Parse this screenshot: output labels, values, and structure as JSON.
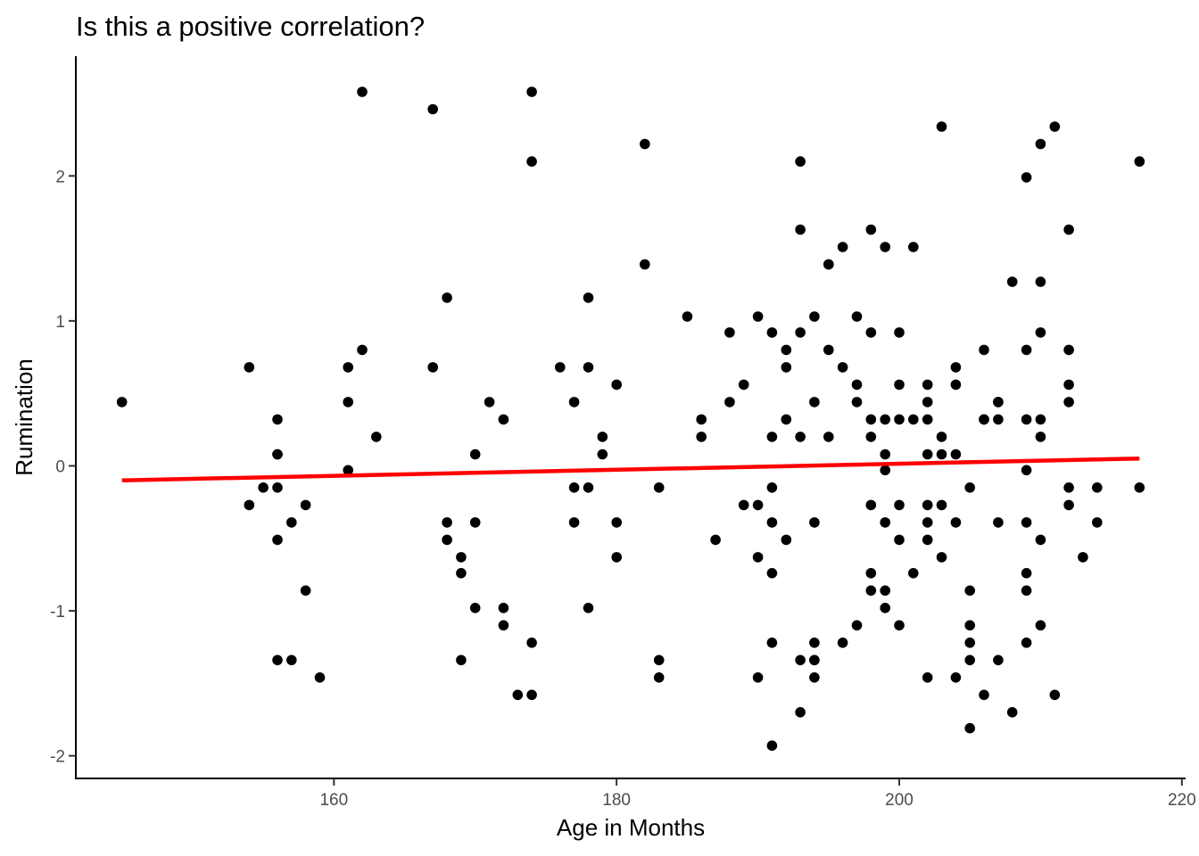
{
  "chart_data": {
    "type": "scatter",
    "title": "Is this a positive correlation?",
    "xlabel": "Age in Months",
    "ylabel": "Rumination",
    "xlim": [
      141.8,
      220.2
    ],
    "ylim": [
      -2.15,
      2.82
    ],
    "x_ticks": [
      160,
      180,
      200,
      220
    ],
    "y_ticks": [
      -2,
      -1,
      0,
      1,
      2
    ],
    "grid": false,
    "legend": "none",
    "point_color": "#000000",
    "trend_color": "#ff0000",
    "trend_line": {
      "x": [
        145,
        217
      ],
      "y": [
        -0.1,
        0.05
      ]
    },
    "points": [
      [
        145,
        0.44
      ],
      [
        154,
        0.68
      ],
      [
        154,
        -0.27
      ],
      [
        155,
        -0.15
      ],
      [
        156,
        0.32
      ],
      [
        156,
        0.08
      ],
      [
        156,
        0.08
      ],
      [
        156,
        -0.15
      ],
      [
        156,
        -0.51
      ],
      [
        156,
        -1.34
      ],
      [
        157,
        -0.39
      ],
      [
        157,
        -1.34
      ],
      [
        158,
        -0.27
      ],
      [
        158,
        -0.86
      ],
      [
        159,
        -1.46
      ],
      [
        161,
        0.68
      ],
      [
        161,
        0.44
      ],
      [
        161,
        -0.03
      ],
      [
        162,
        2.58
      ],
      [
        162,
        0.8
      ],
      [
        163,
        0.2
      ],
      [
        167,
        2.46
      ],
      [
        167,
        0.68
      ],
      [
        168,
        1.16
      ],
      [
        168,
        -0.39
      ],
      [
        168,
        -0.51
      ],
      [
        169,
        -0.63
      ],
      [
        169,
        -0.74
      ],
      [
        169,
        -1.34
      ],
      [
        170,
        0.08
      ],
      [
        170,
        -0.39
      ],
      [
        170,
        -0.98
      ],
      [
        171,
        0.44
      ],
      [
        172,
        0.32
      ],
      [
        172,
        -0.98
      ],
      [
        172,
        -1.1
      ],
      [
        173,
        -1.58
      ],
      [
        174,
        2.58
      ],
      [
        174,
        2.1
      ],
      [
        174,
        -1.22
      ],
      [
        174,
        -1.58
      ],
      [
        176,
        0.68
      ],
      [
        177,
        0.44
      ],
      [
        177,
        -0.15
      ],
      [
        177,
        -0.39
      ],
      [
        178,
        1.16
      ],
      [
        178,
        0.68
      ],
      [
        178,
        -0.15
      ],
      [
        178,
        -0.98
      ],
      [
        179,
        0.2
      ],
      [
        179,
        0.08
      ],
      [
        180,
        0.56
      ],
      [
        180,
        -0.39
      ],
      [
        180,
        -0.63
      ],
      [
        182,
        2.22
      ],
      [
        182,
        1.39
      ],
      [
        183,
        -0.15
      ],
      [
        183,
        -1.34
      ],
      [
        183,
        -1.46
      ],
      [
        185,
        1.03
      ],
      [
        186,
        0.32
      ],
      [
        186,
        0.2
      ],
      [
        187,
        -0.51
      ],
      [
        188,
        0.92
      ],
      [
        188,
        0.44
      ],
      [
        189,
        0.56
      ],
      [
        189,
        -0.27
      ],
      [
        190,
        1.03
      ],
      [
        190,
        -0.27
      ],
      [
        190,
        -0.63
      ],
      [
        190,
        -1.46
      ],
      [
        191,
        0.92
      ],
      [
        191,
        0.2
      ],
      [
        191,
        -0.15
      ],
      [
        191,
        -0.39
      ],
      [
        191,
        -0.74
      ],
      [
        191,
        -1.22
      ],
      [
        191,
        -1.93
      ],
      [
        192,
        0.8
      ],
      [
        192,
        0.68
      ],
      [
        192,
        0.32
      ],
      [
        192,
        -0.51
      ],
      [
        193,
        2.1
      ],
      [
        193,
        1.63
      ],
      [
        193,
        0.92
      ],
      [
        193,
        0.2
      ],
      [
        193,
        -1.34
      ],
      [
        193,
        -1.7
      ],
      [
        194,
        1.03
      ],
      [
        194,
        0.44
      ],
      [
        194,
        -0.39
      ],
      [
        194,
        -1.22
      ],
      [
        194,
        -1.34
      ],
      [
        194,
        -1.34
      ],
      [
        194,
        -1.46
      ],
      [
        195,
        1.39
      ],
      [
        195,
        1.39
      ],
      [
        195,
        0.8
      ],
      [
        195,
        0.2
      ],
      [
        196,
        1.51
      ],
      [
        196,
        0.68
      ],
      [
        196,
        -1.22
      ],
      [
        197,
        1.03
      ],
      [
        197,
        0.56
      ],
      [
        197,
        0.44
      ],
      [
        197,
        -1.1
      ],
      [
        198,
        1.63
      ],
      [
        198,
        0.92
      ],
      [
        198,
        0.32
      ],
      [
        198,
        0.2
      ],
      [
        198,
        -0.27
      ],
      [
        198,
        -0.74
      ],
      [
        198,
        -0.86
      ],
      [
        199,
        1.51
      ],
      [
        199,
        0.32
      ],
      [
        199,
        0.08
      ],
      [
        199,
        -0.03
      ],
      [
        199,
        -0.39
      ],
      [
        199,
        -0.86
      ],
      [
        199,
        -0.98
      ],
      [
        200,
        0.92
      ],
      [
        200,
        0.56
      ],
      [
        200,
        0.32
      ],
      [
        200,
        -0.27
      ],
      [
        200,
        -0.51
      ],
      [
        200,
        -1.1
      ],
      [
        201,
        1.51
      ],
      [
        201,
        0.32
      ],
      [
        201,
        -0.74
      ],
      [
        202,
        0.56
      ],
      [
        202,
        0.44
      ],
      [
        202,
        0.32
      ],
      [
        202,
        -0.27
      ],
      [
        202,
        -0.39
      ],
      [
        202,
        -0.51
      ],
      [
        202,
        -1.46
      ],
      [
        202,
        0.08
      ],
      [
        203,
        2.34
      ],
      [
        203,
        0.2
      ],
      [
        203,
        0.08
      ],
      [
        203,
        -0.27
      ],
      [
        203,
        -0.63
      ],
      [
        204,
        0.68
      ],
      [
        204,
        0.56
      ],
      [
        204,
        0.08
      ],
      [
        204,
        -0.39
      ],
      [
        204,
        -1.46
      ],
      [
        205,
        -0.15
      ],
      [
        205,
        -0.86
      ],
      [
        205,
        -1.1
      ],
      [
        205,
        -1.22
      ],
      [
        205,
        -1.34
      ],
      [
        205,
        -1.81
      ],
      [
        206,
        0.8
      ],
      [
        206,
        0.32
      ],
      [
        206,
        0.32
      ],
      [
        206,
        -1.58
      ],
      [
        207,
        0.44
      ],
      [
        207,
        0.44
      ],
      [
        207,
        0.32
      ],
      [
        207,
        -0.39
      ],
      [
        207,
        -1.34
      ],
      [
        208,
        1.27
      ],
      [
        208,
        -1.7
      ],
      [
        209,
        1.99
      ],
      [
        209,
        0.8
      ],
      [
        209,
        0.32
      ],
      [
        209,
        -0.03
      ],
      [
        209,
        -0.39
      ],
      [
        209,
        -0.74
      ],
      [
        209,
        -0.86
      ],
      [
        209,
        -1.22
      ],
      [
        210,
        2.22
      ],
      [
        210,
        1.27
      ],
      [
        210,
        0.92
      ],
      [
        210,
        0.32
      ],
      [
        210,
        0.2
      ],
      [
        210,
        -0.51
      ],
      [
        210,
        -1.1
      ],
      [
        211,
        2.34
      ],
      [
        211,
        -1.58
      ],
      [
        212,
        1.63
      ],
      [
        212,
        0.8
      ],
      [
        212,
        0.56
      ],
      [
        212,
        0.44
      ],
      [
        212,
        -0.15
      ],
      [
        212,
        -0.27
      ],
      [
        213,
        -0.63
      ],
      [
        214,
        -0.15
      ],
      [
        214,
        -0.39
      ],
      [
        217,
        2.1
      ],
      [
        217,
        -0.15
      ]
    ]
  }
}
